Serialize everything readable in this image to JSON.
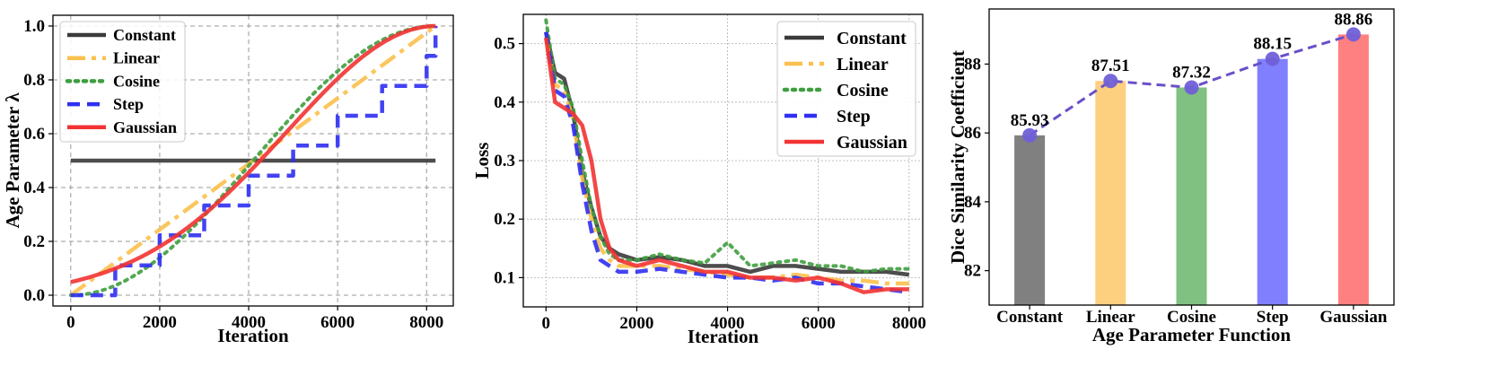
{
  "chart_data": [
    {
      "type": "line",
      "title": "",
      "xlabel": "Iteration",
      "ylabel": "Age Parameter λ",
      "xlim": [
        -400,
        8600
      ],
      "ylim": [
        -0.04,
        1.04
      ],
      "xticks": [
        0,
        2000,
        4000,
        6000,
        8000
      ],
      "yticks": [
        0.0,
        0.2,
        0.4,
        0.6,
        0.8,
        1.0
      ],
      "ytick_labels": [
        "0.0",
        "0.2",
        "0.4",
        "0.6",
        "0.8",
        "1.0"
      ],
      "grid": true,
      "legend": "top-left",
      "series": [
        {
          "name": "Constant",
          "color": "#3a3a3a",
          "dash": "solid"
        },
        {
          "name": "Linear",
          "color": "#fbc04d",
          "dash": "dashdot"
        },
        {
          "name": "Cosine",
          "color": "#3f9e3f",
          "dash": "dotted"
        },
        {
          "name": "Step",
          "color": "#2f2ff2",
          "dash": "dashed"
        },
        {
          "name": "Gaussian",
          "color": "#f23333",
          "dash": "solid"
        }
      ],
      "x_max": 8200
    },
    {
      "type": "line",
      "title": "",
      "xlabel": "Iteration",
      "ylabel": "Loss",
      "xlim": [
        -500,
        8300
      ],
      "ylim": [
        0.05,
        0.55
      ],
      "xticks": [
        0,
        2000,
        4000,
        6000,
        8000
      ],
      "yticks": [
        0.1,
        0.2,
        0.3,
        0.4,
        0.5
      ],
      "ytick_labels": [
        "0.1",
        "0.2",
        "0.3",
        "0.4",
        "0.5"
      ],
      "grid": true,
      "legend": "top-right",
      "x": [
        0,
        200,
        400,
        600,
        800,
        1000,
        1200,
        1400,
        1600,
        2000,
        2500,
        3000,
        3500,
        4000,
        4500,
        5000,
        5500,
        6000,
        6500,
        7000,
        7500,
        8000
      ],
      "series": [
        {
          "name": "Constant",
          "color": "#3a3a3a",
          "dash": "solid",
          "values": [
            0.52,
            0.45,
            0.44,
            0.38,
            0.28,
            0.22,
            0.17,
            0.15,
            0.14,
            0.13,
            0.135,
            0.13,
            0.12,
            0.12,
            0.11,
            0.12,
            0.12,
            0.115,
            0.11,
            0.11,
            0.11,
            0.105
          ]
        },
        {
          "name": "Linear",
          "color": "#fbc04d",
          "dash": "dashdot",
          "values": [
            0.51,
            0.43,
            0.42,
            0.37,
            0.27,
            0.2,
            0.15,
            0.13,
            0.12,
            0.12,
            0.12,
            0.115,
            0.11,
            0.105,
            0.1,
            0.1,
            0.105,
            0.1,
            0.095,
            0.095,
            0.09,
            0.09
          ]
        },
        {
          "name": "Cosine",
          "color": "#3f9e3f",
          "dash": "dotted",
          "values": [
            0.54,
            0.44,
            0.43,
            0.39,
            0.3,
            0.22,
            0.17,
            0.14,
            0.13,
            0.13,
            0.14,
            0.13,
            0.125,
            0.16,
            0.12,
            0.125,
            0.13,
            0.12,
            0.12,
            0.11,
            0.115,
            0.115
          ]
        },
        {
          "name": "Step",
          "color": "#2f2ff2",
          "dash": "dashed",
          "values": [
            0.52,
            0.42,
            0.41,
            0.36,
            0.26,
            0.18,
            0.13,
            0.12,
            0.11,
            0.11,
            0.115,
            0.11,
            0.105,
            0.1,
            0.1,
            0.095,
            0.1,
            0.09,
            0.09,
            0.085,
            0.08,
            0.075
          ]
        },
        {
          "name": "Gaussian",
          "color": "#f23333",
          "dash": "solid",
          "values": [
            0.51,
            0.4,
            0.39,
            0.38,
            0.36,
            0.3,
            0.2,
            0.15,
            0.13,
            0.12,
            0.13,
            0.12,
            0.11,
            0.11,
            0.1,
            0.1,
            0.095,
            0.1,
            0.09,
            0.075,
            0.08,
            0.08
          ]
        }
      ]
    },
    {
      "type": "bar",
      "title": "",
      "xlabel": "Age Parameter Function",
      "ylabel": "Dice Similarity Coefficient",
      "categories": [
        "Constant",
        "Linear",
        "Cosine",
        "Step",
        "Gaussian"
      ],
      "values": [
        85.93,
        87.51,
        87.32,
        88.15,
        88.86
      ],
      "value_labels": [
        "85.93",
        "87.51",
        "87.32",
        "88.15",
        "88.86"
      ],
      "colors": [
        "#808080",
        "#fdd080",
        "#80c080",
        "#8080ff",
        "#ff8080"
      ],
      "ylim": [
        81.0,
        89.6
      ],
      "yticks": [
        82,
        84,
        86,
        88
      ],
      "line_color": "#6a50c8",
      "grid": false
    }
  ]
}
